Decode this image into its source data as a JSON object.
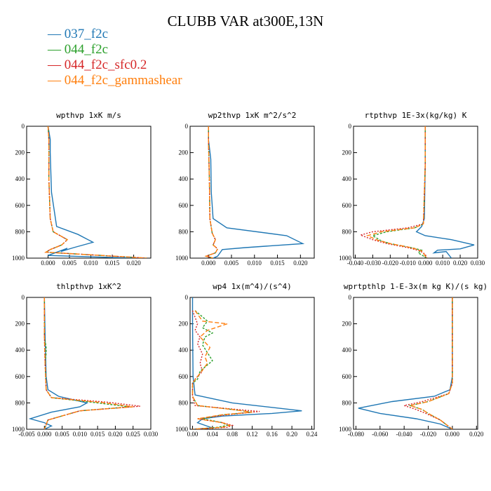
{
  "figure": {
    "title": "CLUBB VAR at300E,13N",
    "legend": [
      {
        "label": "037_f2c",
        "color": "#1f77b4"
      },
      {
        "label": "044_f2c",
        "color": "#2ca02c"
      },
      {
        "label": "044_f2c_sfc0.2",
        "color": "#d62728"
      },
      {
        "label": "044_f2c_gammashear",
        "color": "#ff7f0e"
      }
    ]
  },
  "chart_data": [
    {
      "type": "line",
      "title": "wpthvp  1xK m/s",
      "xlim": [
        -0.005,
        0.024
      ],
      "ylim": [
        0,
        1000
      ],
      "y_reversed": true,
      "xticks": [
        0.0,
        0.005,
        0.01,
        0.015,
        0.02
      ],
      "xtick_labels": [
        "0.000",
        "0.005",
        "0.010",
        "0.015",
        "0.020"
      ],
      "yticks": [
        0,
        200,
        400,
        600,
        800,
        1000
      ],
      "series": [
        {
          "name": "037_f2c",
          "color": "#1f77b4",
          "dash": "",
          "x": [
            0.0,
            0.0005,
            0.0005,
            0.0008,
            0.002,
            0.007,
            0.0105,
            0.006,
            0.003,
            0.0045,
            0.0,
            0.02
          ],
          "y": [
            0,
            100,
            200,
            500,
            760,
            820,
            880,
            920,
            950,
            925,
            980,
            1000
          ]
        },
        {
          "name": "044_f2c",
          "color": "#2ca02c",
          "dash": "3,2",
          "x": [
            0.0,
            0.0002,
            0.0002,
            0.0005,
            0.0012,
            0.0045,
            0.0032,
            0.0005,
            -0.0005,
            0.023
          ],
          "y": [
            0,
            100,
            400,
            700,
            800,
            860,
            900,
            935,
            955,
            1000
          ]
        },
        {
          "name": "044_f2c_sfc0.2",
          "color": "#d62728",
          "dash": "2,2",
          "x": [
            0.0,
            0.0002,
            0.0002,
            0.0005,
            0.0012,
            0.0045,
            0.0032,
            0.0005,
            -0.0005,
            0.023
          ],
          "y": [
            0,
            100,
            400,
            700,
            800,
            860,
            900,
            935,
            955,
            1000
          ]
        },
        {
          "name": "044_f2c_gammashear",
          "color": "#ff7f0e",
          "dash": "6,3",
          "x": [
            0.0,
            0.0002,
            0.0002,
            0.0005,
            0.0012,
            0.0045,
            0.0032,
            0.0005,
            -0.0005,
            0.023
          ],
          "y": [
            0,
            100,
            400,
            700,
            800,
            860,
            900,
            935,
            955,
            1000
          ]
        }
      ]
    },
    {
      "type": "line",
      "title": "wp2thvp  1xK m^2/s^2",
      "xlim": [
        -0.004,
        0.023
      ],
      "ylim": [
        0,
        1000
      ],
      "y_reversed": true,
      "xticks": [
        0.0,
        0.005,
        0.01,
        0.015,
        0.02
      ],
      "xtick_labels": [
        "0.000",
        "0.005",
        "0.010",
        "0.015",
        "0.020"
      ],
      "yticks": [
        0,
        200,
        400,
        600,
        800,
        1000
      ],
      "series": [
        {
          "name": "037_f2c",
          "color": "#1f77b4",
          "dash": "",
          "x": [
            0.0,
            0.0,
            0.0005,
            0.0006,
            0.001,
            0.004,
            0.017,
            0.0205,
            0.008,
            0.003,
            0.0025,
            0.002,
            0.001
          ],
          "y": [
            0,
            100,
            250,
            500,
            700,
            770,
            830,
            890,
            920,
            935,
            960,
            985,
            1000
          ]
        },
        {
          "name": "044_f2c",
          "color": "#2ca02c",
          "dash": "3,2",
          "x": [
            0.0,
            0.0,
            0.0002,
            0.0003,
            0.0008,
            0.0015,
            0.001,
            0.002,
            0.0015,
            -0.0005,
            0.001
          ],
          "y": [
            0,
            100,
            400,
            700,
            810,
            860,
            900,
            930,
            960,
            985,
            1000
          ]
        },
        {
          "name": "044_f2c_sfc0.2",
          "color": "#d62728",
          "dash": "2,2",
          "x": [
            0.0,
            0.0,
            0.0002,
            0.0003,
            0.0008,
            0.0015,
            0.001,
            0.002,
            0.0015,
            -0.0005,
            0.001
          ],
          "y": [
            0,
            100,
            400,
            700,
            810,
            860,
            900,
            930,
            960,
            985,
            1000
          ]
        },
        {
          "name": "044_f2c_gammashear",
          "color": "#ff7f0e",
          "dash": "6,3",
          "x": [
            0.0,
            0.0,
            0.0002,
            0.0003,
            0.0008,
            0.0015,
            0.001,
            0.002,
            0.0015,
            -0.0005,
            0.001
          ],
          "y": [
            0,
            100,
            400,
            700,
            810,
            860,
            900,
            930,
            960,
            985,
            1000
          ]
        }
      ]
    },
    {
      "type": "line",
      "title": "rtpthvp  1E-3x(kg/kg) K",
      "xlim": [
        -0.041,
        0.03
      ],
      "ylim": [
        0,
        1000
      ],
      "y_reversed": true,
      "xticks": [
        -0.04,
        -0.03,
        -0.02,
        -0.01,
        0.0,
        0.01,
        0.02,
        0.03
      ],
      "xtick_labels": [
        "-0.040",
        "-0.030",
        "-0.020",
        "-0.010",
        "0.000",
        "0.010",
        "0.020",
        "0.030"
      ],
      "yticks": [
        0,
        200,
        400,
        600,
        800,
        1000
      ],
      "series": [
        {
          "name": "037_f2c",
          "color": "#1f77b4",
          "dash": "",
          "x": [
            0.0,
            0.0,
            -0.0005,
            -0.002,
            -0.005,
            0.0,
            0.015,
            0.028,
            0.02,
            0.007,
            0.005,
            0.012,
            0.015
          ],
          "y": [
            0,
            300,
            700,
            760,
            800,
            830,
            860,
            900,
            930,
            940,
            960,
            950,
            1000
          ]
        },
        {
          "name": "044_f2c",
          "color": "#2ca02c",
          "dash": "3,2",
          "x": [
            0.0,
            0.0,
            -0.001,
            -0.006,
            -0.022,
            -0.03,
            -0.025,
            -0.02,
            -0.008,
            -0.002,
            -0.004,
            0.001
          ],
          "y": [
            0,
            300,
            740,
            770,
            800,
            830,
            870,
            890,
            920,
            940,
            960,
            1000
          ]
        },
        {
          "name": "044_f2c_sfc0.2",
          "color": "#d62728",
          "dash": "2,2",
          "x": [
            0.0,
            0.0,
            -0.001,
            -0.01,
            -0.03,
            -0.037,
            -0.03,
            -0.022,
            -0.01,
            -0.003,
            0.0,
            0.001
          ],
          "y": [
            0,
            300,
            740,
            770,
            800,
            825,
            860,
            890,
            920,
            945,
            970,
            1000
          ]
        },
        {
          "name": "044_f2c_gammashear",
          "color": "#ff7f0e",
          "dash": "6,3",
          "x": [
            0.0,
            0.0,
            -0.001,
            -0.006,
            -0.025,
            -0.033,
            -0.027,
            -0.02,
            -0.008,
            -0.002,
            -0.001,
            0.001
          ],
          "y": [
            0,
            300,
            740,
            770,
            800,
            830,
            865,
            890,
            920,
            945,
            965,
            1000
          ]
        }
      ]
    },
    {
      "type": "line",
      "title": "thlpthvp  1xK^2",
      "xlim": [
        -0.005,
        0.03
      ],
      "ylim": [
        0,
        1000
      ],
      "y_reversed": true,
      "xticks": [
        -0.005,
        0.0,
        0.005,
        0.01,
        0.015,
        0.02,
        0.025,
        0.03
      ],
      "xtick_labels": [
        "-0.005",
        "0.000",
        "0.005",
        "0.010",
        "0.015",
        "0.020",
        "0.025",
        "0.030"
      ],
      "yticks": [
        0,
        200,
        400,
        600,
        800,
        1000
      ],
      "series": [
        {
          "name": "037_f2c",
          "color": "#1f77b4",
          "dash": "",
          "x": [
            0.0,
            0.0002,
            0.0005,
            0.001,
            0.004,
            0.012,
            0.01,
            0.002,
            -0.004,
            0.0,
            0.002,
            0.0
          ],
          "y": [
            0,
            300,
            600,
            700,
            750,
            800,
            830,
            870,
            920,
            950,
            975,
            1000
          ]
        },
        {
          "name": "044_f2c",
          "color": "#2ca02c",
          "dash": "3,2",
          "x": [
            0.0,
            0.0,
            0.0005,
            0.0005,
            0.0002,
            0.0005,
            0.002,
            0.015,
            0.024,
            0.01,
            0.001,
            0.0
          ],
          "y": [
            0,
            300,
            380,
            420,
            500,
            700,
            760,
            800,
            830,
            860,
            930,
            1000
          ]
        },
        {
          "name": "044_f2c_sfc0.2",
          "color": "#d62728",
          "dash": "2,2",
          "x": [
            0.0,
            0.0,
            0.0002,
            0.0005,
            0.002,
            0.018,
            0.027,
            0.01,
            0.001,
            0.0
          ],
          "y": [
            0,
            300,
            500,
            700,
            760,
            795,
            825,
            860,
            930,
            1000
          ]
        },
        {
          "name": "044_f2c_gammashear",
          "color": "#ff7f0e",
          "dash": "6,3",
          "x": [
            0.0,
            0.0,
            0.0002,
            0.0005,
            0.002,
            0.017,
            0.025,
            0.01,
            0.001,
            0.0
          ],
          "y": [
            0,
            300,
            500,
            700,
            760,
            800,
            830,
            860,
            930,
            1000
          ]
        }
      ]
    },
    {
      "type": "line",
      "title": "wp4  1x(m^4)/(s^4)",
      "xlim": [
        -0.005,
        0.245
      ],
      "ylim": [
        0,
        1000
      ],
      "y_reversed": true,
      "xticks": [
        0.0,
        0.04,
        0.08,
        0.12,
        0.16,
        0.2,
        0.24
      ],
      "xtick_labels": [
        "0.00",
        "0.04",
        "0.08",
        "0.12",
        "0.16",
        "0.20",
        "0.24"
      ],
      "yticks": [
        0,
        200,
        400,
        600,
        800,
        1000
      ],
      "series": [
        {
          "name": "037_f2c",
          "color": "#1f77b4",
          "dash": "",
          "x": [
            0.0,
            0.0,
            0.001,
            0.005,
            0.08,
            0.22,
            0.16,
            0.06,
            0.02,
            0.01,
            0.04,
            0.0
          ],
          "y": [
            0,
            200,
            600,
            740,
            800,
            860,
            880,
            900,
            920,
            950,
            990,
            1000
          ]
        },
        {
          "name": "044_f2c",
          "color": "#2ca02c",
          "dash": "3,2",
          "x": [
            0.005,
            0.03,
            0.02,
            0.04,
            0.025,
            0.02,
            0.04,
            0.015,
            0.01,
            0.0,
            0.0,
            0.01,
            0.08,
            0.12,
            0.06,
            0.02,
            0.06,
            0.07,
            0.05,
            0.0
          ],
          "y": [
            100,
            180,
            230,
            270,
            300,
            360,
            480,
            560,
            620,
            650,
            750,
            820,
            850,
            870,
            890,
            920,
            950,
            970,
            985,
            1000
          ]
        },
        {
          "name": "044_f2c_sfc0.2",
          "color": "#d62728",
          "dash": "2,2",
          "x": [
            0.0,
            0.01,
            0.005,
            0.015,
            0.01,
            0.02,
            0.015,
            0.02,
            0.005,
            0.0,
            0.0,
            0.005,
            0.09,
            0.135,
            0.07,
            0.01,
            0.06,
            0.08,
            0.07,
            0.0
          ],
          "y": [
            100,
            200,
            250,
            300,
            350,
            430,
            500,
            560,
            620,
            650,
            750,
            820,
            850,
            865,
            890,
            920,
            950,
            970,
            985,
            1000
          ]
        },
        {
          "name": "044_f2c_gammashear",
          "color": "#ff7f0e",
          "dash": "6,3",
          "x": [
            0.005,
            0.02,
            0.07,
            0.03,
            0.015,
            0.035,
            0.025,
            0.03,
            0.01,
            0.0,
            0.0,
            0.01,
            0.08,
            0.12,
            0.06,
            0.01,
            0.06,
            0.075,
            0.06,
            0.0
          ],
          "y": [
            100,
            180,
            200,
            250,
            300,
            380,
            450,
            500,
            600,
            650,
            750,
            820,
            850,
            870,
            890,
            920,
            950,
            970,
            985,
            1000
          ]
        }
      ]
    },
    {
      "type": "line",
      "title": "wprtpthlp  1-E-3x(m kg K)/(s kg)",
      "xlim": [
        -0.082,
        0.021
      ],
      "ylim": [
        0,
        1000
      ],
      "y_reversed": true,
      "xticks": [
        -0.08,
        -0.06,
        -0.04,
        -0.02,
        0.0,
        0.02
      ],
      "xtick_labels": [
        "-0.080",
        "-0.060",
        "-0.040",
        "-0.020",
        "0.000",
        "0.020"
      ],
      "yticks": [
        0,
        200,
        400,
        600,
        800,
        1000
      ],
      "series": [
        {
          "name": "037_f2c",
          "color": "#1f77b4",
          "dash": "",
          "x": [
            0.0,
            0.0,
            -0.002,
            -0.015,
            -0.05,
            -0.078,
            -0.06,
            -0.03,
            -0.01,
            0.0
          ],
          "y": [
            0,
            600,
            700,
            750,
            790,
            840,
            880,
            920,
            960,
            1000
          ]
        },
        {
          "name": "044_f2c",
          "color": "#2ca02c",
          "dash": "3,2",
          "x": [
            0.0,
            0.0,
            -0.003,
            -0.02,
            -0.035,
            -0.025,
            -0.02,
            -0.01,
            0.0
          ],
          "y": [
            0,
            650,
            730,
            790,
            820,
            850,
            880,
            930,
            1000
          ]
        },
        {
          "name": "044_f2c_sfc0.2",
          "color": "#d62728",
          "dash": "2,2",
          "x": [
            0.0,
            0.0,
            -0.003,
            -0.025,
            -0.04,
            -0.03,
            -0.022,
            -0.01,
            0.0
          ],
          "y": [
            0,
            650,
            730,
            790,
            820,
            850,
            880,
            930,
            1000
          ]
        },
        {
          "name": "044_f2c_gammashear",
          "color": "#ff7f0e",
          "dash": "6,3",
          "x": [
            0.0,
            0.0,
            -0.003,
            -0.02,
            -0.035,
            -0.025,
            -0.02,
            -0.01,
            0.0
          ],
          "y": [
            0,
            650,
            730,
            790,
            820,
            850,
            880,
            930,
            1000
          ]
        }
      ]
    }
  ]
}
